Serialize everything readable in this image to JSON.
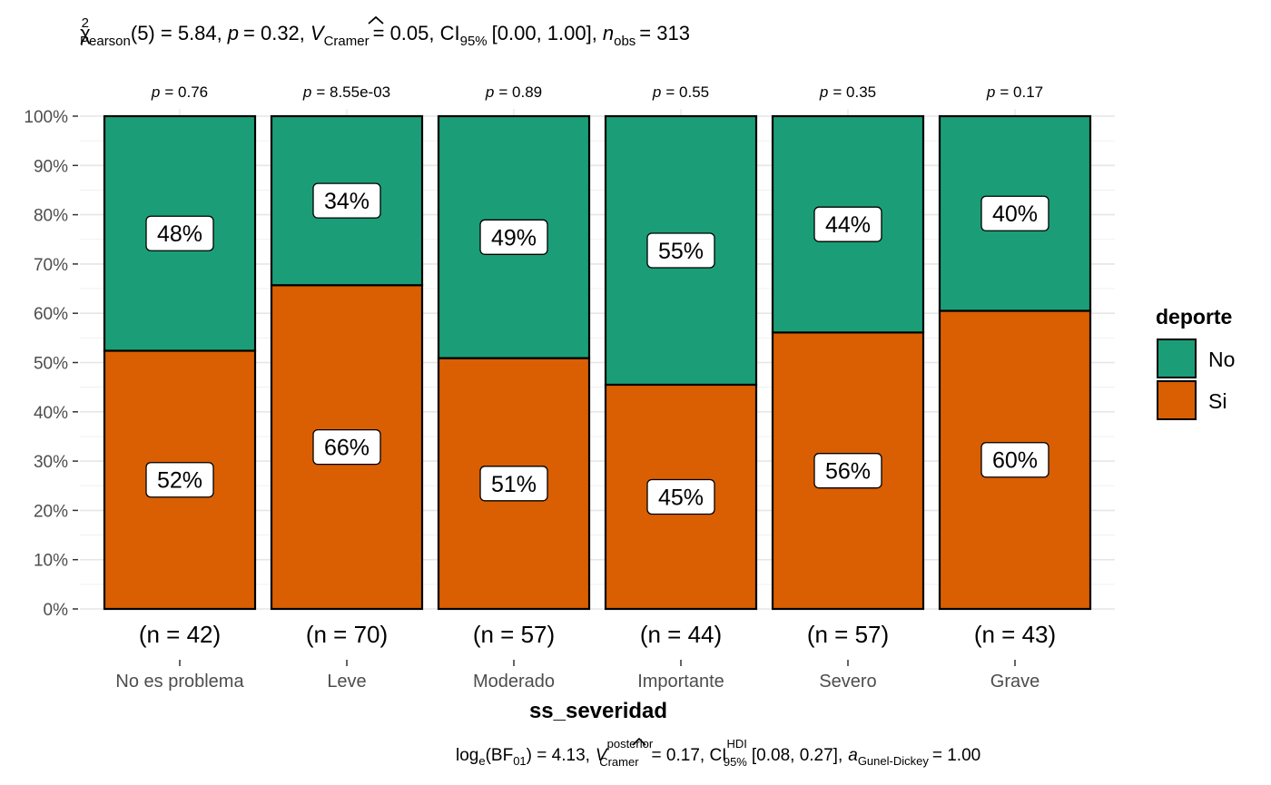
{
  "chart_data": {
    "type": "bar",
    "stacked": true,
    "percent_scale": true,
    "title": "χ²Pearson(5) = 5.84, p = 0.32, V̂Cramer = 0.05, CI95% [0.00, 1.00], nobs = 313",
    "title_parts": {
      "chi_sym": "χ",
      "chi_sup": "2",
      "chi_sub": "Pearson",
      "stat": "(5) = 5.84,",
      "p_sym": "p",
      "p_val": "= 0.32,",
      "v_sym": "V",
      "v_sub": "Cramer",
      "v_val": "= 0.05, CI",
      "ci_sub": "95%",
      "ci_val": "[0.00, 1.00],",
      "n_sym": "n",
      "n_sub": "obs",
      "n_val": "= 313"
    },
    "caption": "loge(BF01) = 4.13, V̂posteriorCramer = 0.17, CIHDI95% [0.08, 0.27], aGunel-Dickey = 1.00",
    "caption_parts": {
      "log": "log",
      "log_sub": "e",
      "bf_open": "(BF",
      "bf_sub": "01",
      "bf_close": ") = 4.13,",
      "v_sym": "V",
      "v_sup": "posterior",
      "v_sub": "Cramer",
      "v_val": "= 0.17, CI",
      "ci_sup": "HDI",
      "ci_sub": "95%",
      "ci_val": "[0.08, 0.27],",
      "a_sym": "a",
      "a_sub": "Gunel-Dickey",
      "a_val": "= 1.00"
    },
    "xlabel": "ss_severidad",
    "ylabel": "",
    "ylim": [
      0,
      100
    ],
    "y_ticks": [
      "0%",
      "10%",
      "20%",
      "30%",
      "40%",
      "50%",
      "60%",
      "70%",
      "80%",
      "90%",
      "100%"
    ],
    "categories": [
      "No es problema",
      "Leve",
      "Moderado",
      "Importante",
      "Severo",
      "Grave"
    ],
    "counts": [
      "(n = 42)",
      "(n = 70)",
      "(n = 57)",
      "(n = 44)",
      "(n = 57)",
      "(n = 43)"
    ],
    "p_labels": [
      "= 0.76",
      "= 8.55e-03",
      "= 0.89",
      "= 0.55",
      "= 0.35",
      "= 0.17"
    ],
    "p_symbol": "p",
    "series": [
      {
        "name": "Si",
        "color": "#D95F02",
        "values": [
          52.4,
          65.7,
          50.9,
          45.5,
          56.1,
          60.5
        ],
        "labels": [
          "52%",
          "66%",
          "51%",
          "45%",
          "56%",
          "60%"
        ]
      },
      {
        "name": "No",
        "color": "#1B9E77",
        "values": [
          47.6,
          34.3,
          49.1,
          54.5,
          43.9,
          39.5
        ],
        "labels": [
          "48%",
          "34%",
          "49%",
          "55%",
          "44%",
          "40%"
        ]
      }
    ],
    "legend": {
      "title": "deporte",
      "position": "right",
      "entries": [
        "No",
        "Si"
      ]
    },
    "grid": true
  }
}
